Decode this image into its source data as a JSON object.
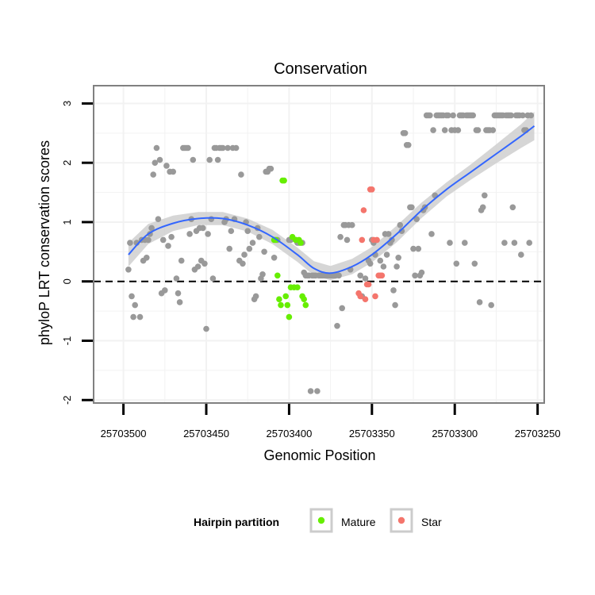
{
  "chart_data": {
    "type": "scatter",
    "title": "Conservation",
    "xlabel": "Genomic Position",
    "ylabel": "phyloP LRT conservation scores",
    "x_reversed": true,
    "xlim": [
      25703518,
      25703246
    ],
    "ylim": [
      -2.05,
      3.3
    ],
    "x_ticks": [
      25703500,
      25703450,
      25703400,
      25703350,
      25703300,
      25703250
    ],
    "x_tick_labels": [
      "25703500",
      "25703450",
      "25703400",
      "25703350",
      "25703300",
      "25703250"
    ],
    "y_ticks": [
      -2,
      -1,
      0,
      1,
      2,
      3
    ],
    "y_tick_labels": [
      "-2",
      "-1",
      "0",
      "1",
      "2",
      "3"
    ],
    "reference_line": {
      "y": 0,
      "style": "dashed"
    },
    "legend": {
      "title": "Hairpin partition",
      "entries": [
        {
          "name": "Mature",
          "color": "#66ee00"
        },
        {
          "name": "Star",
          "color": "#f4756c"
        }
      ]
    },
    "colors": {
      "background_point": "#999999",
      "mature": "#66ee00",
      "star": "#f4756c",
      "smooth_line": "#3366ff",
      "ribbon": "#cccccc",
      "grid": "#f2f2f2"
    },
    "series": [
      {
        "name": "Other",
        "color": "#999999",
        "points": [
          [
            25703497,
            0.2
          ],
          [
            25703496,
            0.65
          ],
          [
            25703495,
            -0.25
          ],
          [
            25703494,
            -0.6
          ],
          [
            25703493,
            -0.4
          ],
          [
            25703492,
            0.65
          ],
          [
            25703490,
            -0.6
          ],
          [
            25703489,
            0.7
          ],
          [
            25703488,
            0.35
          ],
          [
            25703487,
            0.7
          ],
          [
            25703486,
            0.4
          ],
          [
            25703485,
            0.7
          ],
          [
            25703484,
            0.8
          ],
          [
            25703483,
            0.9
          ],
          [
            25703482,
            1.8
          ],
          [
            25703481,
            2.0
          ],
          [
            25703480,
            2.25
          ],
          [
            25703479,
            1.05
          ],
          [
            25703478,
            2.05
          ],
          [
            25703477,
            -0.2
          ],
          [
            25703476,
            0.7
          ],
          [
            25703475,
            -0.15
          ],
          [
            25703474,
            1.95
          ],
          [
            25703473,
            0.6
          ],
          [
            25703472,
            1.85
          ],
          [
            25703471,
            0.75
          ],
          [
            25703470,
            1.85
          ],
          [
            25703468,
            0.05
          ],
          [
            25703467,
            -0.2
          ],
          [
            25703466,
            -0.35
          ],
          [
            25703465,
            0.35
          ],
          [
            25703464,
            2.25
          ],
          [
            25703463,
            2.25
          ],
          [
            25703462,
            2.25
          ],
          [
            25703461,
            2.25
          ],
          [
            25703460,
            0.8
          ],
          [
            25703459,
            1.05
          ],
          [
            25703458,
            2.05
          ],
          [
            25703457,
            0.2
          ],
          [
            25703456,
            0.85
          ],
          [
            25703455,
            0.25
          ],
          [
            25703454,
            0.9
          ],
          [
            25703453,
            0.35
          ],
          [
            25703452,
            0.9
          ],
          [
            25703451,
            0.3
          ],
          [
            25703450,
            -0.8
          ],
          [
            25703449,
            0.8
          ],
          [
            25703448,
            2.05
          ],
          [
            25703447,
            1.05
          ],
          [
            25703446,
            0.05
          ],
          [
            25703445,
            2.25
          ],
          [
            25703444,
            2.25
          ],
          [
            25703443,
            2.05
          ],
          [
            25703442,
            2.25
          ],
          [
            25703441,
            2.25
          ],
          [
            25703440,
            2.25
          ],
          [
            25703439,
            1.0
          ],
          [
            25703438,
            1.05
          ],
          [
            25703437,
            2.25
          ],
          [
            25703436,
            0.55
          ],
          [
            25703435,
            0.85
          ],
          [
            25703434,
            2.25
          ],
          [
            25703433,
            1.05
          ],
          [
            25703432,
            2.25
          ],
          [
            25703430,
            0.35
          ],
          [
            25703429,
            1.8
          ],
          [
            25703428,
            0.3
          ],
          [
            25703427,
            0.45
          ],
          [
            25703426,
            1.0
          ],
          [
            25703425,
            0.85
          ],
          [
            25703424,
            0.55
          ],
          [
            25703422,
            0.65
          ],
          [
            25703421,
            -0.3
          ],
          [
            25703420,
            -0.25
          ],
          [
            25703419,
            0.9
          ],
          [
            25703418,
            0.75
          ],
          [
            25703417,
            0.05
          ],
          [
            25703416,
            0.12
          ],
          [
            25703415,
            0.5
          ],
          [
            25703414,
            1.85
          ],
          [
            25703413,
            1.85
          ],
          [
            25703412,
            1.9
          ],
          [
            25703411,
            1.9
          ],
          [
            25703409,
            0.4
          ],
          [
            25703407,
            0.7
          ],
          [
            25703400,
            0.7
          ],
          [
            25703399,
            0.7
          ],
          [
            25703396,
            0.7
          ],
          [
            25703395,
            0.65
          ],
          [
            25703394,
            0.65
          ],
          [
            25703392,
            0.65
          ],
          [
            25703391,
            0.15
          ],
          [
            25703390,
            0.1
          ],
          [
            25703389,
            0.1
          ],
          [
            25703388,
            0.1
          ],
          [
            25703387,
            -1.85
          ],
          [
            25703386,
            0.1
          ],
          [
            25703385,
            0.1
          ],
          [
            25703384,
            0.1
          ],
          [
            25703383,
            -1.85
          ],
          [
            25703382,
            0.1
          ],
          [
            25703381,
            0.1
          ],
          [
            25703380,
            0.1
          ],
          [
            25703379,
            0.1
          ],
          [
            25703378,
            0.1
          ],
          [
            25703377,
            0.1
          ],
          [
            25703376,
            0.1
          ],
          [
            25703375,
            0.1
          ],
          [
            25703374,
            0.1
          ],
          [
            25703373,
            0.1
          ],
          [
            25703372,
            0.1
          ],
          [
            25703371,
            -0.75
          ],
          [
            25703370,
            0.1
          ],
          [
            25703369,
            0.75
          ],
          [
            25703368,
            -0.45
          ],
          [
            25703367,
            0.95
          ],
          [
            25703366,
            0.95
          ],
          [
            25703365,
            0.7
          ],
          [
            25703364,
            0.95
          ],
          [
            25703363,
            0.2
          ],
          [
            25703362,
            0.95
          ],
          [
            25703357,
            0.1
          ],
          [
            25703356,
            -0.25
          ],
          [
            25703354,
            0.05
          ],
          [
            25703352,
            0.35
          ],
          [
            25703351,
            0.3
          ],
          [
            25703350,
            0.7
          ],
          [
            25703349,
            0.65
          ],
          [
            25703348,
            0.45
          ],
          [
            25703345,
            0.35
          ],
          [
            25703343,
            0.25
          ],
          [
            25703342,
            0.8
          ],
          [
            25703341,
            0.45
          ],
          [
            25703340,
            0.8
          ],
          [
            25703339,
            0.65
          ],
          [
            25703338,
            0.7
          ],
          [
            25703337,
            -0.15
          ],
          [
            25703336,
            -0.4
          ],
          [
            25703335,
            0.25
          ],
          [
            25703334,
            0.4
          ],
          [
            25703333,
            0.95
          ],
          [
            25703332,
            0.85
          ],
          [
            25703331,
            2.5
          ],
          [
            25703330,
            2.5
          ],
          [
            25703329,
            2.3
          ],
          [
            25703328,
            2.3
          ],
          [
            25703327,
            1.25
          ],
          [
            25703326,
            1.25
          ],
          [
            25703325,
            0.55
          ],
          [
            25703324,
            0.1
          ],
          [
            25703323,
            1.05
          ],
          [
            25703322,
            0.55
          ],
          [
            25703321,
            0.1
          ],
          [
            25703320,
            0.15
          ],
          [
            25703319,
            1.2
          ],
          [
            25703318,
            1.25
          ],
          [
            25703317,
            2.8
          ],
          [
            25703316,
            2.8
          ],
          [
            25703315,
            2.8
          ],
          [
            25703314,
            0.8
          ],
          [
            25703313,
            2.55
          ],
          [
            25703312,
            1.45
          ],
          [
            25703311,
            2.8
          ],
          [
            25703310,
            2.8
          ],
          [
            25703309,
            2.8
          ],
          [
            25703308,
            2.8
          ],
          [
            25703307,
            2.8
          ],
          [
            25703306,
            2.55
          ],
          [
            25703305,
            2.8
          ],
          [
            25703304,
            2.8
          ],
          [
            25703303,
            0.65
          ],
          [
            25703302,
            2.55
          ],
          [
            25703301,
            2.8
          ],
          [
            25703300,
            2.55
          ],
          [
            25703299,
            0.3
          ],
          [
            25703298,
            2.55
          ],
          [
            25703297,
            2.8
          ],
          [
            25703296,
            2.8
          ],
          [
            25703295,
            2.8
          ],
          [
            25703294,
            0.65
          ],
          [
            25703293,
            2.8
          ],
          [
            25703292,
            2.8
          ],
          [
            25703291,
            2.8
          ],
          [
            25703290,
            2.8
          ],
          [
            25703289,
            2.8
          ],
          [
            25703288,
            0.3
          ],
          [
            25703287,
            2.55
          ],
          [
            25703286,
            2.55
          ],
          [
            25703285,
            -0.35
          ],
          [
            25703284,
            1.2
          ],
          [
            25703283,
            1.25
          ],
          [
            25703282,
            1.45
          ],
          [
            25703281,
            2.55
          ],
          [
            25703280,
            2.55
          ],
          [
            25703279,
            2.55
          ],
          [
            25703278,
            -0.4
          ],
          [
            25703277,
            2.55
          ],
          [
            25703276,
            2.8
          ],
          [
            25703275,
            2.8
          ],
          [
            25703274,
            2.8
          ],
          [
            25703273,
            2.8
          ],
          [
            25703272,
            2.8
          ],
          [
            25703271,
            2.8
          ],
          [
            25703270,
            0.65
          ],
          [
            25703269,
            2.8
          ],
          [
            25703268,
            2.8
          ],
          [
            25703267,
            2.8
          ],
          [
            25703266,
            2.8
          ],
          [
            25703265,
            1.25
          ],
          [
            25703264,
            0.65
          ],
          [
            25703263,
            2.8
          ],
          [
            25703262,
            2.8
          ],
          [
            25703261,
            2.8
          ],
          [
            25703260,
            0.45
          ],
          [
            25703259,
            2.8
          ],
          [
            25703258,
            2.55
          ],
          [
            25703257,
            2.55
          ],
          [
            25703256,
            2.8
          ],
          [
            25703255,
            0.65
          ],
          [
            25703254,
            2.8
          ]
        ]
      },
      {
        "name": "Mature",
        "color": "#66ee00",
        "points": [
          [
            25703409,
            0.7
          ],
          [
            25703408,
            0.7
          ],
          [
            25703407,
            0.1
          ],
          [
            25703406,
            -0.3
          ],
          [
            25703405,
            -0.4
          ],
          [
            25703404,
            1.7
          ],
          [
            25703403,
            1.7
          ],
          [
            25703402,
            -0.25
          ],
          [
            25703401,
            -0.4
          ],
          [
            25703400,
            -0.6
          ],
          [
            25703399,
            -0.1
          ],
          [
            25703398,
            0.75
          ],
          [
            25703397,
            -0.1
          ],
          [
            25703396,
            0.7
          ],
          [
            25703395,
            -0.1
          ],
          [
            25703394,
            0.7
          ],
          [
            25703393,
            0.65
          ],
          [
            25703392,
            -0.25
          ],
          [
            25703391,
            -0.3
          ],
          [
            25703390,
            -0.4
          ]
        ]
      },
      {
        "name": "Star",
        "color": "#f4756c",
        "points": [
          [
            25703358,
            -0.2
          ],
          [
            25703357,
            -0.25
          ],
          [
            25703356,
            0.7
          ],
          [
            25703355,
            1.2
          ],
          [
            25703354,
            -0.3
          ],
          [
            25703353,
            -0.05
          ],
          [
            25703352,
            -0.05
          ],
          [
            25703351,
            1.55
          ],
          [
            25703350,
            1.55
          ],
          [
            25703349,
            0.7
          ],
          [
            25703348,
            -0.25
          ],
          [
            25703347,
            0.7
          ],
          [
            25703346,
            0.1
          ],
          [
            25703345,
            0.1
          ],
          [
            25703344,
            0.1
          ]
        ]
      }
    ],
    "smooth": {
      "x": [
        25703497,
        25703485,
        25703470,
        25703455,
        25703440,
        25703425,
        25703410,
        25703395,
        25703385,
        25703375,
        25703362,
        25703350,
        25703335,
        25703320,
        25703305,
        25703290,
        25703275,
        25703260,
        25703252
      ],
      "y": [
        0.45,
        0.8,
        0.98,
        1.06,
        1.06,
        0.95,
        0.75,
        0.45,
        0.22,
        0.14,
        0.25,
        0.45,
        0.8,
        1.2,
        1.55,
        1.85,
        2.15,
        2.45,
        2.62
      ],
      "lower": [
        0.25,
        0.63,
        0.85,
        0.95,
        0.95,
        0.84,
        0.63,
        0.33,
        0.1,
        0.02,
        0.12,
        0.32,
        0.66,
        1.07,
        1.43,
        1.72,
        1.99,
        2.25,
        2.38
      ],
      "upper": [
        0.65,
        0.97,
        1.11,
        1.17,
        1.17,
        1.06,
        0.87,
        0.57,
        0.34,
        0.26,
        0.38,
        0.58,
        0.94,
        1.33,
        1.67,
        1.98,
        2.31,
        2.65,
        2.86
      ]
    }
  }
}
